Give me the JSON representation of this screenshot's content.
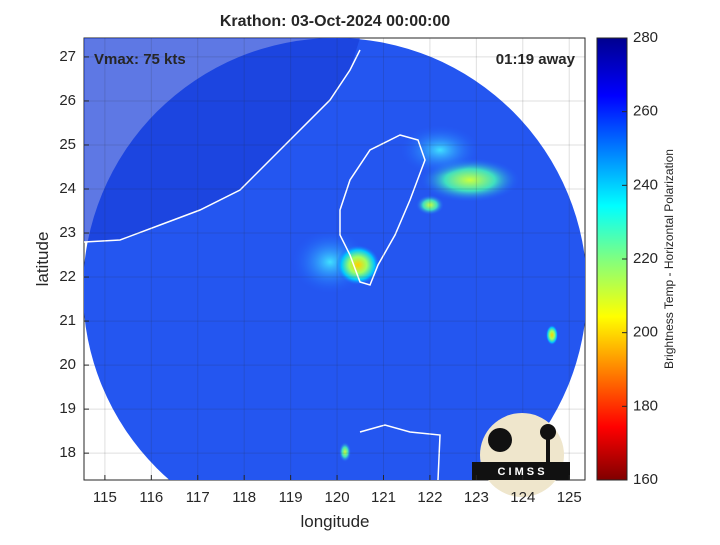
{
  "chart_data": {
    "type": "map",
    "title": "Krathon: 03-Oct-2024 00:00:00",
    "annotations": [
      "Vmax: 75 kts",
      "01:19 away"
    ],
    "xlabel": "longitude",
    "ylabel": "latitude",
    "xlim": [
      114.55,
      125.34
    ],
    "ylim": [
      17.39,
      27.43
    ],
    "xticks": [
      115,
      116,
      117,
      118,
      119,
      120,
      121,
      122,
      123,
      124,
      125
    ],
    "yticks": [
      18,
      19,
      20,
      21,
      22,
      23,
      24,
      25,
      26,
      27
    ],
    "grid": true,
    "colorbar": {
      "label": "Brightness Temp - Horizontal Polarization",
      "lim": [
        160,
        280
      ],
      "ticks": [
        160,
        180,
        200,
        220,
        240,
        260,
        280
      ]
    }
  },
  "logo": {
    "text": "C I M S S"
  }
}
